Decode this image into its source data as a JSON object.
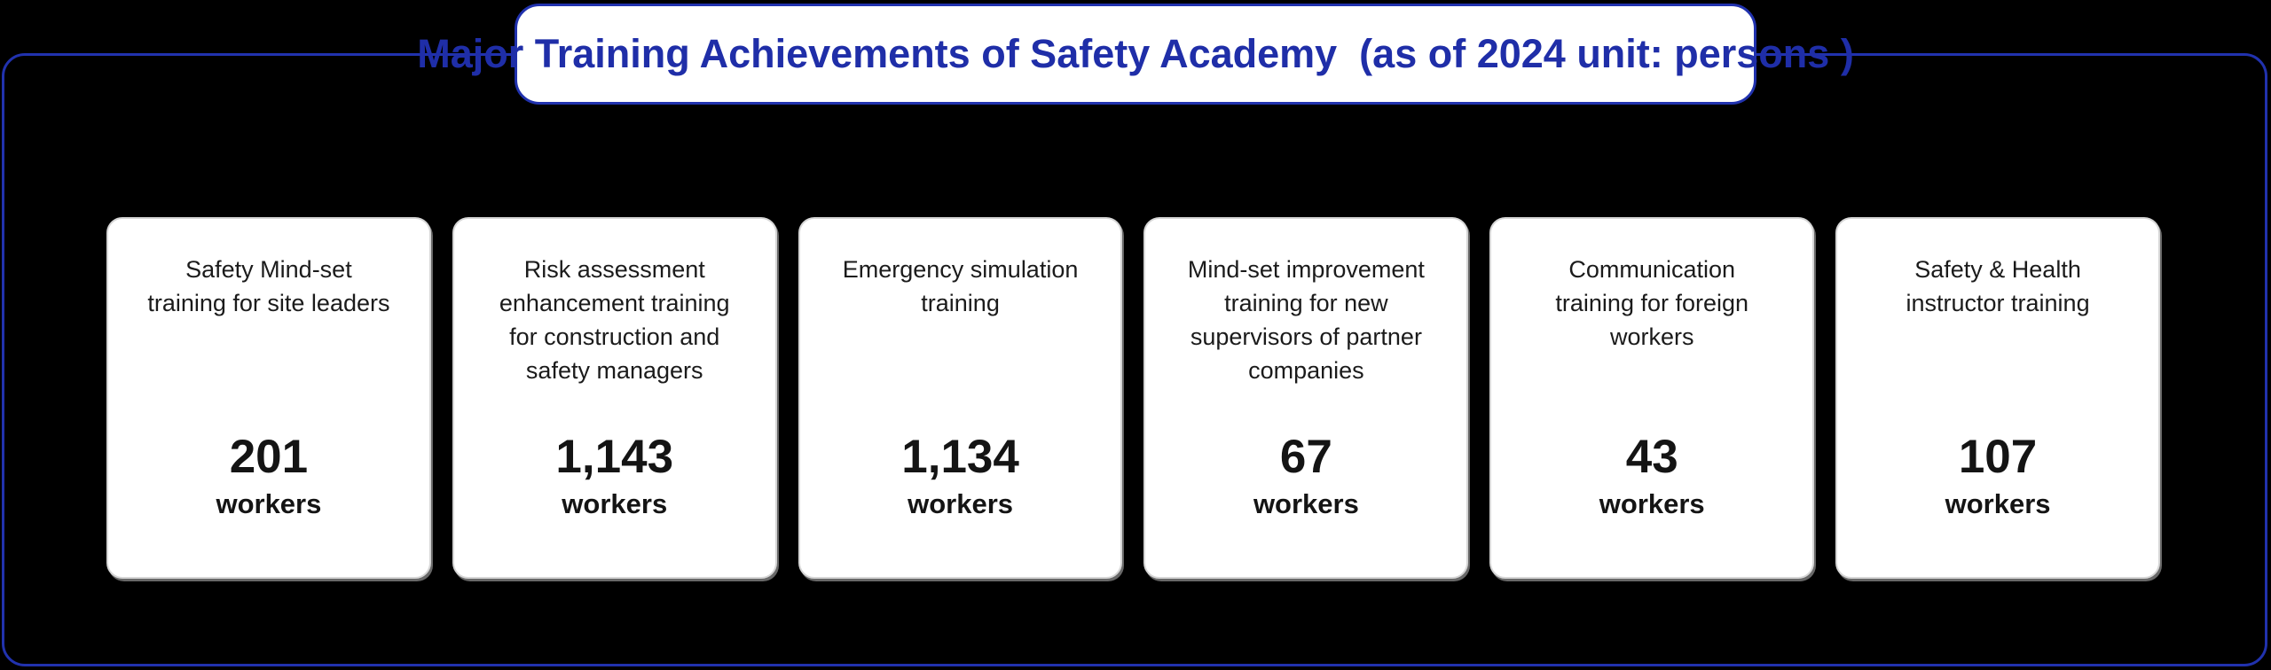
{
  "title": "Major Training Achievements of Safety Academy  (as of 2024 unit: persons )",
  "colors": {
    "background": "#000000",
    "accent_blue_border": "#2132AE",
    "title_text_blue": "#1F2EA8",
    "card_background": "#FFFFFF",
    "card_border_gray": "#D6D6D6",
    "card_text_dark": "#1B1B1B"
  },
  "cards": [
    {
      "label": "Safety Mind-set\ntraining for site leaders",
      "value": "201",
      "unit": "workers"
    },
    {
      "label": "Risk assessment\nenhancement training\nfor construction and\nsafety managers",
      "value": "1,143",
      "unit": "workers"
    },
    {
      "label": "Emergency simulation\ntraining",
      "value": "1,134",
      "unit": "workers"
    },
    {
      "label": "Mind-set improvement\ntraining for new\nsupervisors of partner\ncompanies",
      "value": "67",
      "unit": "workers"
    },
    {
      "label": "Communication\ntraining for foreign\nworkers",
      "value": "43",
      "unit": "workers"
    },
    {
      "label": "Safety & Health\ninstructor training",
      "value": "107",
      "unit": "workers"
    }
  ],
  "chart_data": {
    "type": "table",
    "title": "Major Training Achievements of Safety Academy (as of 2024 unit: persons)",
    "categories": [
      "Safety Mind-set training for site leaders",
      "Risk assessment enhancement training for construction and safety managers",
      "Emergency simulation training",
      "Mind-set improvement training for new supervisors of partner companies",
      "Communication training for foreign workers",
      "Safety & Health instructor training"
    ],
    "values": [
      201,
      1143,
      1134,
      67,
      43,
      107
    ],
    "unit": "workers",
    "as_of": "2024",
    "layout": "six stat cards in one row on black background, title pill centered on top border"
  }
}
